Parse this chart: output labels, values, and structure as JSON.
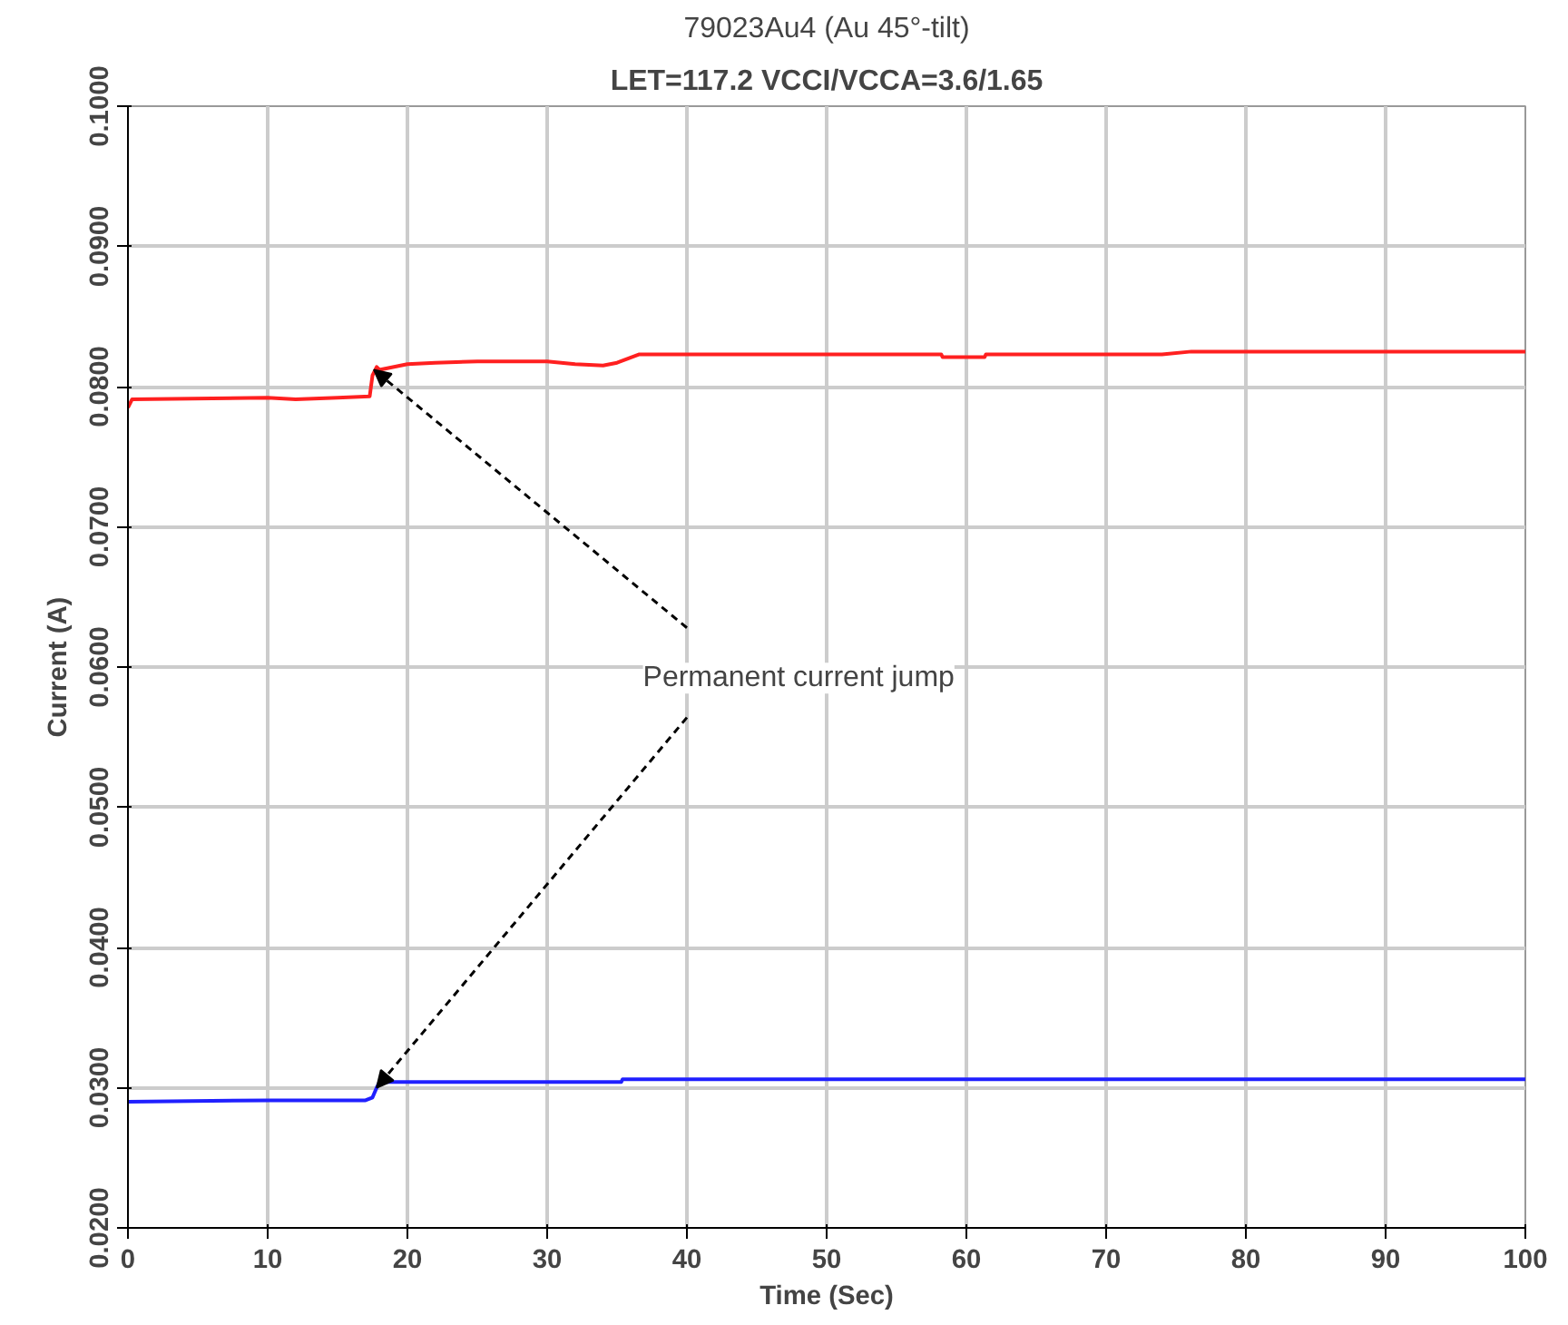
{
  "chart_data": {
    "type": "line",
    "title": "79023Au4 (Au 45°-tilt)",
    "subtitle": "LET=117.2 VCCI/VCCA=3.6/1.65",
    "xlabel": "Time (Sec)",
    "ylabel": "Current (A)",
    "xlim": [
      0,
      100
    ],
    "xticks": [
      0,
      10,
      20,
      30,
      40,
      50,
      60,
      70,
      80,
      90,
      100
    ],
    "ylim": [
      0.02,
      0.1
    ],
    "yticks": [
      {
        "value": 0.02,
        "label": "0.0200"
      },
      {
        "value": 0.03,
        "label": "0.0300"
      },
      {
        "value": 0.04,
        "label": "0.0400"
      },
      {
        "value": 0.05,
        "label": "0.0500"
      },
      {
        "value": 0.06,
        "label": "0.0600"
      },
      {
        "value": 0.07,
        "label": "0.0700"
      },
      {
        "value": 0.08,
        "label": "0.0800"
      },
      {
        "value": 0.09,
        "label": "0.0900"
      },
      {
        "value": 0.1,
        "label": "0.1000"
      }
    ],
    "grid": true,
    "series": [
      {
        "color": "#ff2020",
        "x": [
          0,
          0.3,
          10,
          12,
          15,
          17.3,
          17.5,
          17.8,
          18,
          20,
          22,
          25,
          30,
          32,
          34,
          35,
          36.6,
          58.2,
          58.3,
          61.3,
          61.4,
          74,
          76.1,
          100
        ],
        "values": [
          0.0785,
          0.0791,
          0.0792,
          0.0791,
          0.0792,
          0.0793,
          0.0808,
          0.0814,
          0.0812,
          0.0816,
          0.0817,
          0.0818,
          0.0818,
          0.0816,
          0.0815,
          0.0817,
          0.0823,
          0.0823,
          0.0821,
          0.0821,
          0.0823,
          0.0823,
          0.0825,
          0.0825
        ]
      },
      {
        "color": "#2020ff",
        "x": [
          0,
          10,
          15,
          17,
          17.5,
          17.8,
          18,
          25,
          35.3,
          35.4,
          100
        ],
        "values": [
          0.029,
          0.0291,
          0.0291,
          0.0291,
          0.0293,
          0.03,
          0.0304,
          0.0304,
          0.0304,
          0.0306,
          0.0306
        ]
      }
    ],
    "annotations": [
      {
        "text": "Permanent current jump",
        "x": 17.6,
        "y": 0.0812
      }
    ]
  }
}
